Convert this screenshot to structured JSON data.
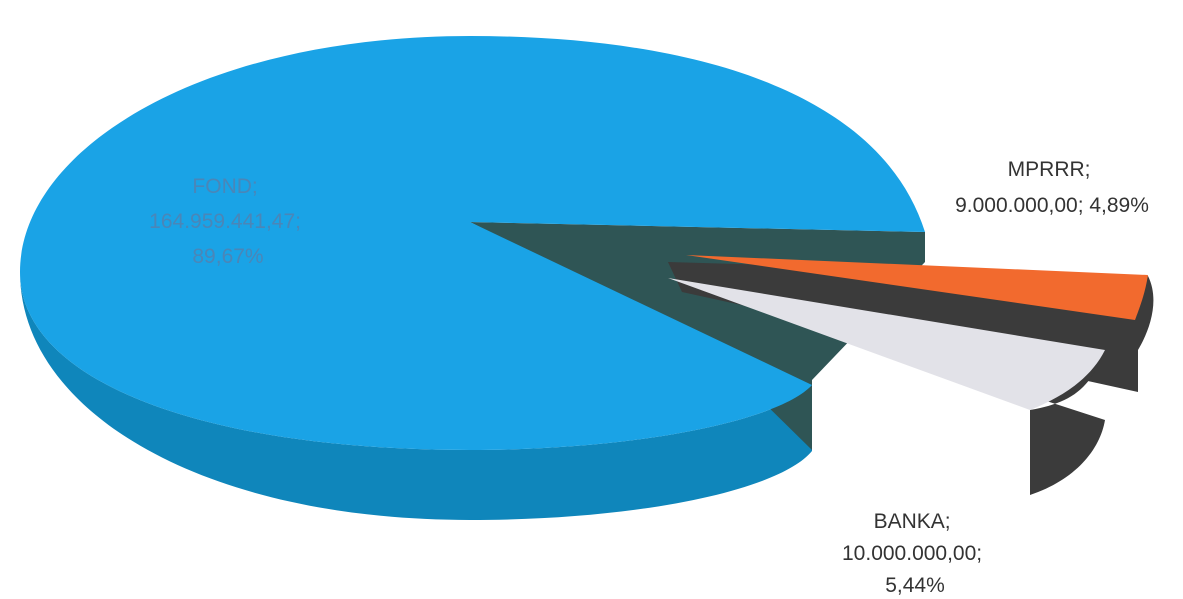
{
  "chart_data": {
    "type": "pie",
    "title": "",
    "slices": [
      {
        "name": "FOND",
        "value": 164959441.47,
        "value_label": "164.959.441,47",
        "percent_label": "89,67%",
        "color": "#1aa3e6"
      },
      {
        "name": "MPRRR",
        "value": 9000000.0,
        "value_label": "9.000.000,00",
        "percent_label": "4,89%",
        "color": "#f26a2e"
      },
      {
        "name": "BANKA",
        "value": 10000000.0,
        "value_label": "10.000.000,00",
        "percent_label": "5,44%",
        "color": "#e2e2e8"
      }
    ],
    "labels": {
      "fond": [
        "FOND;",
        "164.959.441,47;",
        "89,67%"
      ],
      "mprrr": [
        "MPRRR;",
        "9.000.000,00; 4,89%"
      ],
      "banka": [
        "BANKA;",
        "10.000.000,00;",
        "5,44%"
      ]
    },
    "colors": {
      "fond_side": "#0f86bb",
      "mprrr_side": "#3b3b3b",
      "banka_side": "#3b3b3b",
      "inner_wall": "#2f5555"
    }
  }
}
